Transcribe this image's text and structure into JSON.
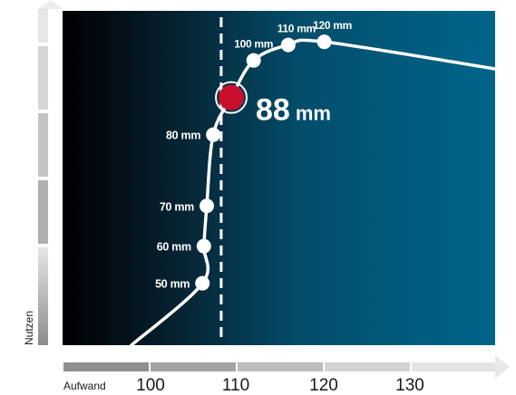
{
  "chart_data": {
    "type": "line",
    "xlabel": "Aufwand",
    "ylabel": "Nutzen",
    "x_ticks": [
      "100",
      "110",
      "120",
      "130"
    ],
    "points": [
      {
        "label": "50 mm",
        "x": 99.4,
        "y": 2.0
      },
      {
        "label": "60 mm",
        "x": 99.6,
        "y": 3.2
      },
      {
        "label": "70 mm",
        "x": 100.0,
        "y": 4.5
      },
      {
        "label": "80 mm",
        "x": 100.9,
        "y": 6.8
      },
      {
        "label": "100 mm",
        "x": 106.5,
        "y": 9.2
      },
      {
        "label": "110 mm",
        "x": 111.3,
        "y": 9.7
      },
      {
        "label": "120 mm",
        "x": 116.3,
        "y": 9.8
      }
    ],
    "highlight": {
      "value": "88",
      "unit": "mm",
      "x": 103.4,
      "y": 8.0
    },
    "reference_line_x": 102.0,
    "xlim": [
      80,
      140
    ],
    "ylim": [
      0,
      10.8
    ],
    "colors": {
      "background_left": "#000000",
      "background_right": "#00658b",
      "curve": "#ffffff",
      "highlight": "#c8102e"
    }
  }
}
